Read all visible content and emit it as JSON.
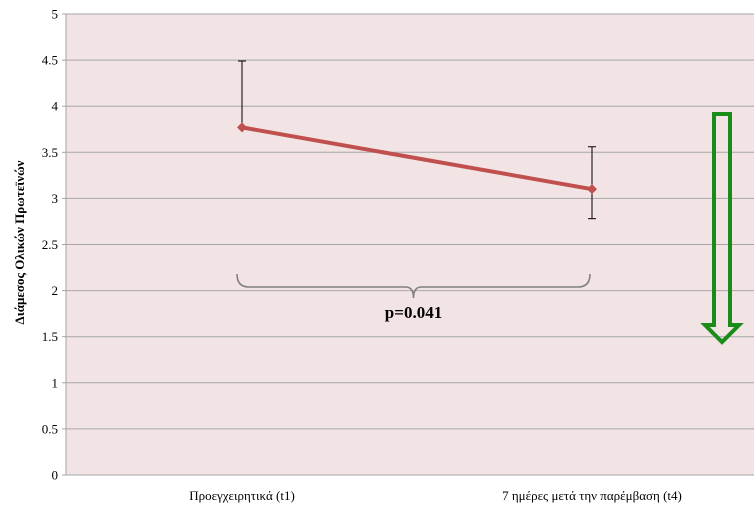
{
  "chart_data": {
    "type": "line",
    "title": "",
    "xlabel": "",
    "ylabel": "Διάμεσος Ολικών Πρωτεϊνών",
    "ylim": [
      0,
      5
    ],
    "yticks": [
      "0",
      "0.5",
      "1",
      "1.5",
      "2",
      "2.5",
      "3",
      "3.5",
      "4",
      "4.5",
      "5"
    ],
    "grid": true,
    "categories": [
      "Προεγχειρητικά (t1)",
      "7 ημέρες μετά την παρέμβαση (t4)"
    ],
    "series": [
      {
        "values": [
          3.77,
          3.1
        ],
        "error_upper": [
          4.49,
          3.56
        ],
        "error_lower": [
          3.77,
          2.78
        ]
      }
    ],
    "annotation": "p=0.041",
    "indicator": "down-arrow",
    "colors": {
      "plot_background": "#f2e4e4",
      "gridline": "#a6a6a6",
      "series_line": "#c0504d",
      "arrow": "#1a8c1a",
      "bracket": "#808080",
      "error_bar": "#000000"
    }
  }
}
